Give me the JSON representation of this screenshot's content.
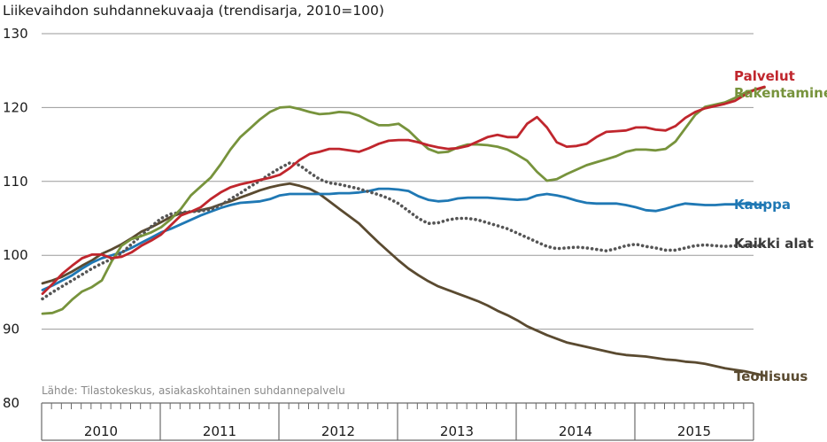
{
  "chart_data": {
    "type": "line",
    "title": "Liikevaihdon suhdannekuvaaja (trendisarja, 2010=100)",
    "source": "Lähde: Tilastokeskus, asiakaskohtainen suhdannepalvelu",
    "ylim": [
      80,
      130
    ],
    "yticks": [
      80,
      90,
      100,
      110,
      120,
      130
    ],
    "grid": true,
    "x_start_year": 2010,
    "years": [
      "2010",
      "2011",
      "2012",
      "2013",
      "2014",
      "2015"
    ],
    "series": [
      {
        "name": "Teollisuus",
        "color": "#5a4a30",
        "style": "solid",
        "values": [
          96.2,
          96.6,
          97.1,
          97.8,
          98.6,
          99.3,
          100.2,
          100.8,
          101.5,
          102.3,
          103.2,
          103.8,
          104.5,
          105.2,
          105.7,
          105.9,
          106.1,
          106.4,
          106.9,
          107.3,
          107.8,
          108.3,
          108.8,
          109.2,
          109.5,
          109.7,
          109.4,
          109.0,
          108.3,
          107.3,
          106.3,
          105.3,
          104.3,
          103.0,
          101.7,
          100.5,
          99.3,
          98.2,
          97.3,
          96.5,
          95.8,
          95.3,
          94.8,
          94.3,
          93.8,
          93.2,
          92.5,
          91.9,
          91.2,
          90.4,
          89.8,
          89.2,
          88.7,
          88.2,
          87.9,
          87.6,
          87.3,
          87.0,
          86.7,
          86.5,
          86.4,
          86.3,
          86.1,
          85.9,
          85.8,
          85.6,
          85.5,
          85.3,
          85.0,
          84.7,
          84.5,
          84.3,
          84.0,
          83.7
        ]
      },
      {
        "name": "Kauppa",
        "color": "#1f78b4",
        "style": "solid",
        "values": [
          95.3,
          95.9,
          96.6,
          97.3,
          98.2,
          99.0,
          99.6,
          100.0,
          100.4,
          101.0,
          101.7,
          102.4,
          103.1,
          103.6,
          104.2,
          104.8,
          105.4,
          105.9,
          106.4,
          106.8,
          107.1,
          107.2,
          107.3,
          107.6,
          108.1,
          108.3,
          108.3,
          108.3,
          108.3,
          108.3,
          108.4,
          108.4,
          108.5,
          108.7,
          109.0,
          109.0,
          108.9,
          108.7,
          108.0,
          107.5,
          107.3,
          107.4,
          107.7,
          107.8,
          107.8,
          107.8,
          107.7,
          107.6,
          107.5,
          107.6,
          108.1,
          108.3,
          108.1,
          107.8,
          107.4,
          107.1,
          107.0,
          107.0,
          107.0,
          106.8,
          106.5,
          106.1,
          106.0,
          106.3,
          106.7,
          107.0,
          106.9,
          106.8,
          106.8,
          106.9,
          106.9,
          107.0,
          106.9,
          106.8
        ]
      },
      {
        "name": "Kaikki alat",
        "color": "#555555",
        "style": "dotted",
        "values": [
          94.1,
          95.0,
          95.8,
          96.6,
          97.4,
          98.2,
          98.9,
          99.5,
          100.3,
          101.5,
          102.7,
          103.9,
          105.0,
          105.6,
          105.8,
          105.9,
          106.0,
          106.2,
          106.8,
          107.6,
          108.4,
          109.3,
          110.1,
          111.0,
          111.8,
          112.5,
          112.2,
          111.2,
          110.3,
          109.8,
          109.6,
          109.3,
          109.0,
          108.6,
          108.2,
          107.7,
          107.0,
          106.0,
          105.0,
          104.3,
          104.4,
          104.8,
          105.0,
          105.0,
          104.8,
          104.4,
          104.0,
          103.6,
          103.0,
          102.4,
          101.8,
          101.2,
          100.9,
          101.0,
          101.1,
          101.0,
          100.8,
          100.6,
          100.9,
          101.3,
          101.5,
          101.2,
          101.0,
          100.7,
          100.7,
          101.0,
          101.3,
          101.4,
          101.3,
          101.2,
          101.3,
          101.3,
          101.3,
          101.3
        ]
      },
      {
        "name": "Rakentaminen",
        "color": "#77933c",
        "style": "solid",
        "values": [
          92.1,
          92.2,
          92.7,
          94.0,
          95.1,
          95.7,
          96.6,
          99.2,
          101.3,
          102.2,
          102.6,
          103.1,
          103.8,
          104.9,
          106.3,
          108.1,
          109.3,
          110.5,
          112.3,
          114.3,
          116.0,
          117.2,
          118.4,
          119.4,
          120.0,
          120.1,
          119.8,
          119.4,
          119.1,
          119.2,
          119.4,
          119.3,
          118.9,
          118.2,
          117.6,
          117.6,
          117.8,
          116.9,
          115.6,
          114.4,
          113.9,
          114.0,
          114.6,
          115.0,
          115.0,
          114.9,
          114.7,
          114.3,
          113.6,
          112.8,
          111.3,
          110.1,
          110.3,
          111.0,
          111.6,
          112.2,
          112.6,
          113.0,
          113.4,
          114.0,
          114.3,
          114.3,
          114.2,
          114.4,
          115.4,
          117.2,
          119.0,
          120.1,
          120.4,
          120.7,
          121.3,
          122.0,
          122.4,
          122.7
        ]
      },
      {
        "name": "Palvelut",
        "color": "#c0262d",
        "style": "solid",
        "values": [
          94.8,
          96.1,
          97.5,
          98.6,
          99.6,
          100.1,
          100.1,
          99.6,
          99.8,
          100.4,
          101.3,
          102.0,
          102.8,
          104.1,
          105.4,
          105.9,
          106.5,
          107.6,
          108.5,
          109.2,
          109.6,
          109.9,
          110.2,
          110.5,
          110.9,
          111.8,
          112.9,
          113.7,
          114.0,
          114.4,
          114.4,
          114.2,
          114.0,
          114.5,
          115.1,
          115.5,
          115.6,
          115.6,
          115.3,
          114.9,
          114.6,
          114.4,
          114.5,
          114.8,
          115.4,
          116.0,
          116.3,
          116.0,
          116.0,
          117.8,
          118.7,
          117.3,
          115.3,
          114.7,
          114.8,
          115.1,
          116.0,
          116.7,
          116.8,
          116.9,
          117.3,
          117.3,
          117.0,
          116.9,
          117.5,
          118.6,
          119.4,
          119.9,
          120.2,
          120.5,
          120.9,
          121.7,
          122.4,
          122.8
        ]
      }
    ]
  }
}
